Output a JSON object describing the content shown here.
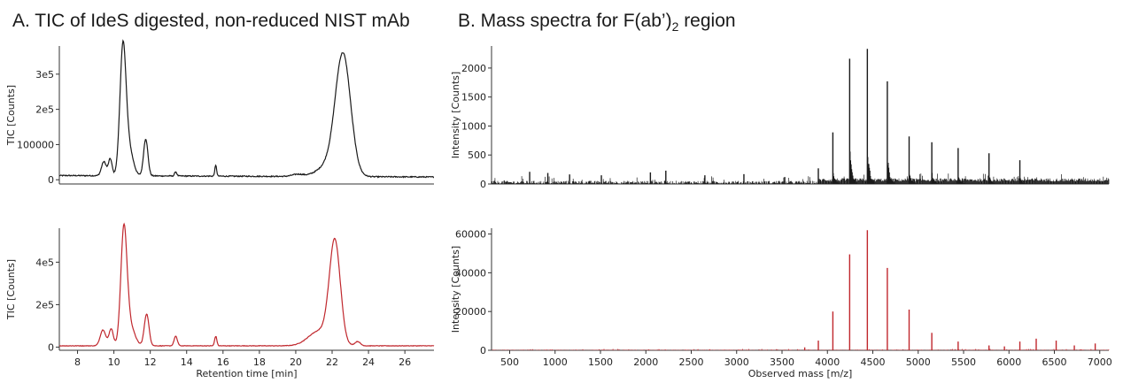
{
  "panels": {
    "a": {
      "title_prefix": "A. TIC of IdeS digested, non-reduced NIST mAb"
    },
    "b": {
      "title_prefix": "B. Mass spectra for F(ab’)",
      "title_sub": "2",
      "title_suffix": " region"
    }
  },
  "colors": {
    "black_trace": "#1a1a1a",
    "red_trace": "#c0272d",
    "axis": "#333333"
  },
  "chart_data": [
    {
      "id": "tic-top",
      "type": "line",
      "xlabel": "",
      "ylabel": "TIC [Counts]",
      "xlim": [
        7,
        27.6
      ],
      "ylim": [
        -12000,
        380000
      ],
      "xticks": [],
      "yticks": [
        {
          "v": 0,
          "label": "0"
        },
        {
          "v": 100000,
          "label": "100000"
        },
        {
          "v": 200000,
          "label": "2e5"
        },
        {
          "v": 300000,
          "label": "3e5"
        }
      ],
      "series": [
        {
          "color": "black_trace",
          "baseline": 12000,
          "baseline_slope": -200,
          "peaks": [
            [
              9.45,
              40000,
              0.13
            ],
            [
              9.8,
              48000,
              0.1
            ],
            [
              10.5,
              362000,
              0.17
            ],
            [
              10.85,
              70000,
              0.22
            ],
            [
              11.75,
              105000,
              0.12
            ],
            [
              13.4,
              12000,
              0.06
            ],
            [
              15.6,
              30000,
              0.05
            ],
            [
              20.1,
              6000,
              0.3
            ],
            [
              21.8,
              30000,
              0.6
            ],
            [
              22.6,
              340000,
              0.42
            ]
          ],
          "noise": 3000
        }
      ]
    },
    {
      "id": "tic-bottom",
      "type": "line",
      "xlabel": "Retention time [min]",
      "ylabel": "TIC [Counts]",
      "xlim": [
        7,
        27.6
      ],
      "ylim": [
        -15000,
        560000
      ],
      "xticks": [
        {
          "v": 8,
          "label": "8"
        },
        {
          "v": 10,
          "label": "10"
        },
        {
          "v": 12,
          "label": "12"
        },
        {
          "v": 14,
          "label": "14"
        },
        {
          "v": 16,
          "label": "16"
        },
        {
          "v": 18,
          "label": "18"
        },
        {
          "v": 20,
          "label": "20"
        },
        {
          "v": 22,
          "label": "22"
        },
        {
          "v": 24,
          "label": "24"
        },
        {
          "v": 26,
          "label": "26"
        }
      ],
      "yticks": [
        {
          "v": 0,
          "label": "0"
        },
        {
          "v": 200000,
          "label": "2e5"
        },
        {
          "v": 400000,
          "label": "4e5"
        }
      ],
      "series": [
        {
          "color": "red_trace",
          "baseline": 6000,
          "baseline_slope": 0,
          "peaks": [
            [
              9.4,
              75000,
              0.15
            ],
            [
              9.85,
              80000,
              0.12
            ],
            [
              10.55,
              540000,
              0.17
            ],
            [
              10.9,
              90000,
              0.25
            ],
            [
              11.8,
              150000,
              0.13
            ],
            [
              13.4,
              45000,
              0.09
            ],
            [
              15.6,
              45000,
              0.06
            ],
            [
              21.3,
              70000,
              0.6
            ],
            [
              22.15,
              480000,
              0.3
            ],
            [
              23.4,
              20000,
              0.15
            ]
          ],
          "noise": 2500
        }
      ]
    },
    {
      "id": "ms-top",
      "type": "line",
      "xlabel": "",
      "ylabel": "Intensity [Counts]",
      "xlim": [
        300,
        7100
      ],
      "ylim": [
        0,
        2380
      ],
      "xticks": [],
      "yticks": [
        {
          "v": 0,
          "label": "0"
        },
        {
          "v": 500,
          "label": "500"
        },
        {
          "v": 1000,
          "label": "1000"
        },
        {
          "v": 1500,
          "label": "1500"
        },
        {
          "v": 2000,
          "label": "2000"
        }
      ],
      "series": [
        {
          "color": "black_trace",
          "style": "spectrum",
          "noise": 55,
          "envelope_start": 3900,
          "sticks": [
            [
              720,
              210
            ],
            [
              920,
              190
            ],
            [
              1160,
              165
            ],
            [
              1510,
              150
            ],
            [
              2050,
              200
            ],
            [
              2220,
              230
            ],
            [
              2650,
              150
            ],
            [
              3080,
              170
            ],
            [
              3530,
              120
            ],
            [
              3900,
              270
            ],
            [
              4060,
              890
            ],
            [
              4245,
              2160
            ],
            [
              4440,
              2330
            ],
            [
              4660,
              1770
            ],
            [
              4900,
              820
            ],
            [
              5150,
              720
            ],
            [
              5440,
              620
            ],
            [
              5780,
              530
            ],
            [
              6120,
              410
            ]
          ]
        }
      ]
    },
    {
      "id": "ms-bottom",
      "type": "line",
      "xlabel": "Observed mass [m/z]",
      "ylabel": "Intensity [Counts]",
      "xlim": [
        300,
        7100
      ],
      "ylim": [
        0,
        63000
      ],
      "xticks": [
        {
          "v": 500,
          "label": "500"
        },
        {
          "v": 1000,
          "label": "1000"
        },
        {
          "v": 1500,
          "label": "1500"
        },
        {
          "v": 2000,
          "label": "2000"
        },
        {
          "v": 2500,
          "label": "2500"
        },
        {
          "v": 3000,
          "label": "3000"
        },
        {
          "v": 3500,
          "label": "3500"
        },
        {
          "v": 4000,
          "label": "4000"
        },
        {
          "v": 4500,
          "label": "4500"
        },
        {
          "v": 5000,
          "label": "5000"
        },
        {
          "v": 5500,
          "label": "5500"
        },
        {
          "v": 6000,
          "label": "6000"
        },
        {
          "v": 6500,
          "label": "6500"
        },
        {
          "v": 7000,
          "label": "7000"
        }
      ],
      "yticks": [
        {
          "v": 0,
          "label": "0"
        },
        {
          "v": 20000,
          "label": "20000"
        },
        {
          "v": 40000,
          "label": "40000"
        },
        {
          "v": 60000,
          "label": "60000"
        }
      ],
      "series": [
        {
          "color": "red_trace",
          "style": "spectrum",
          "noise": 300,
          "envelope_start": 99999,
          "sticks": [
            [
              3750,
              1500
            ],
            [
              3900,
              5000
            ],
            [
              4060,
              20000
            ],
            [
              4245,
              49500
            ],
            [
              4440,
              62000
            ],
            [
              4660,
              42500
            ],
            [
              4900,
              21000
            ],
            [
              5150,
              9000
            ],
            [
              5440,
              4500
            ],
            [
              5780,
              2500
            ],
            [
              5950,
              2000
            ],
            [
              6120,
              4500
            ],
            [
              6300,
              6000
            ],
            [
              6520,
              5000
            ],
            [
              6720,
              2500
            ],
            [
              6950,
              3500
            ]
          ]
        }
      ]
    }
  ]
}
